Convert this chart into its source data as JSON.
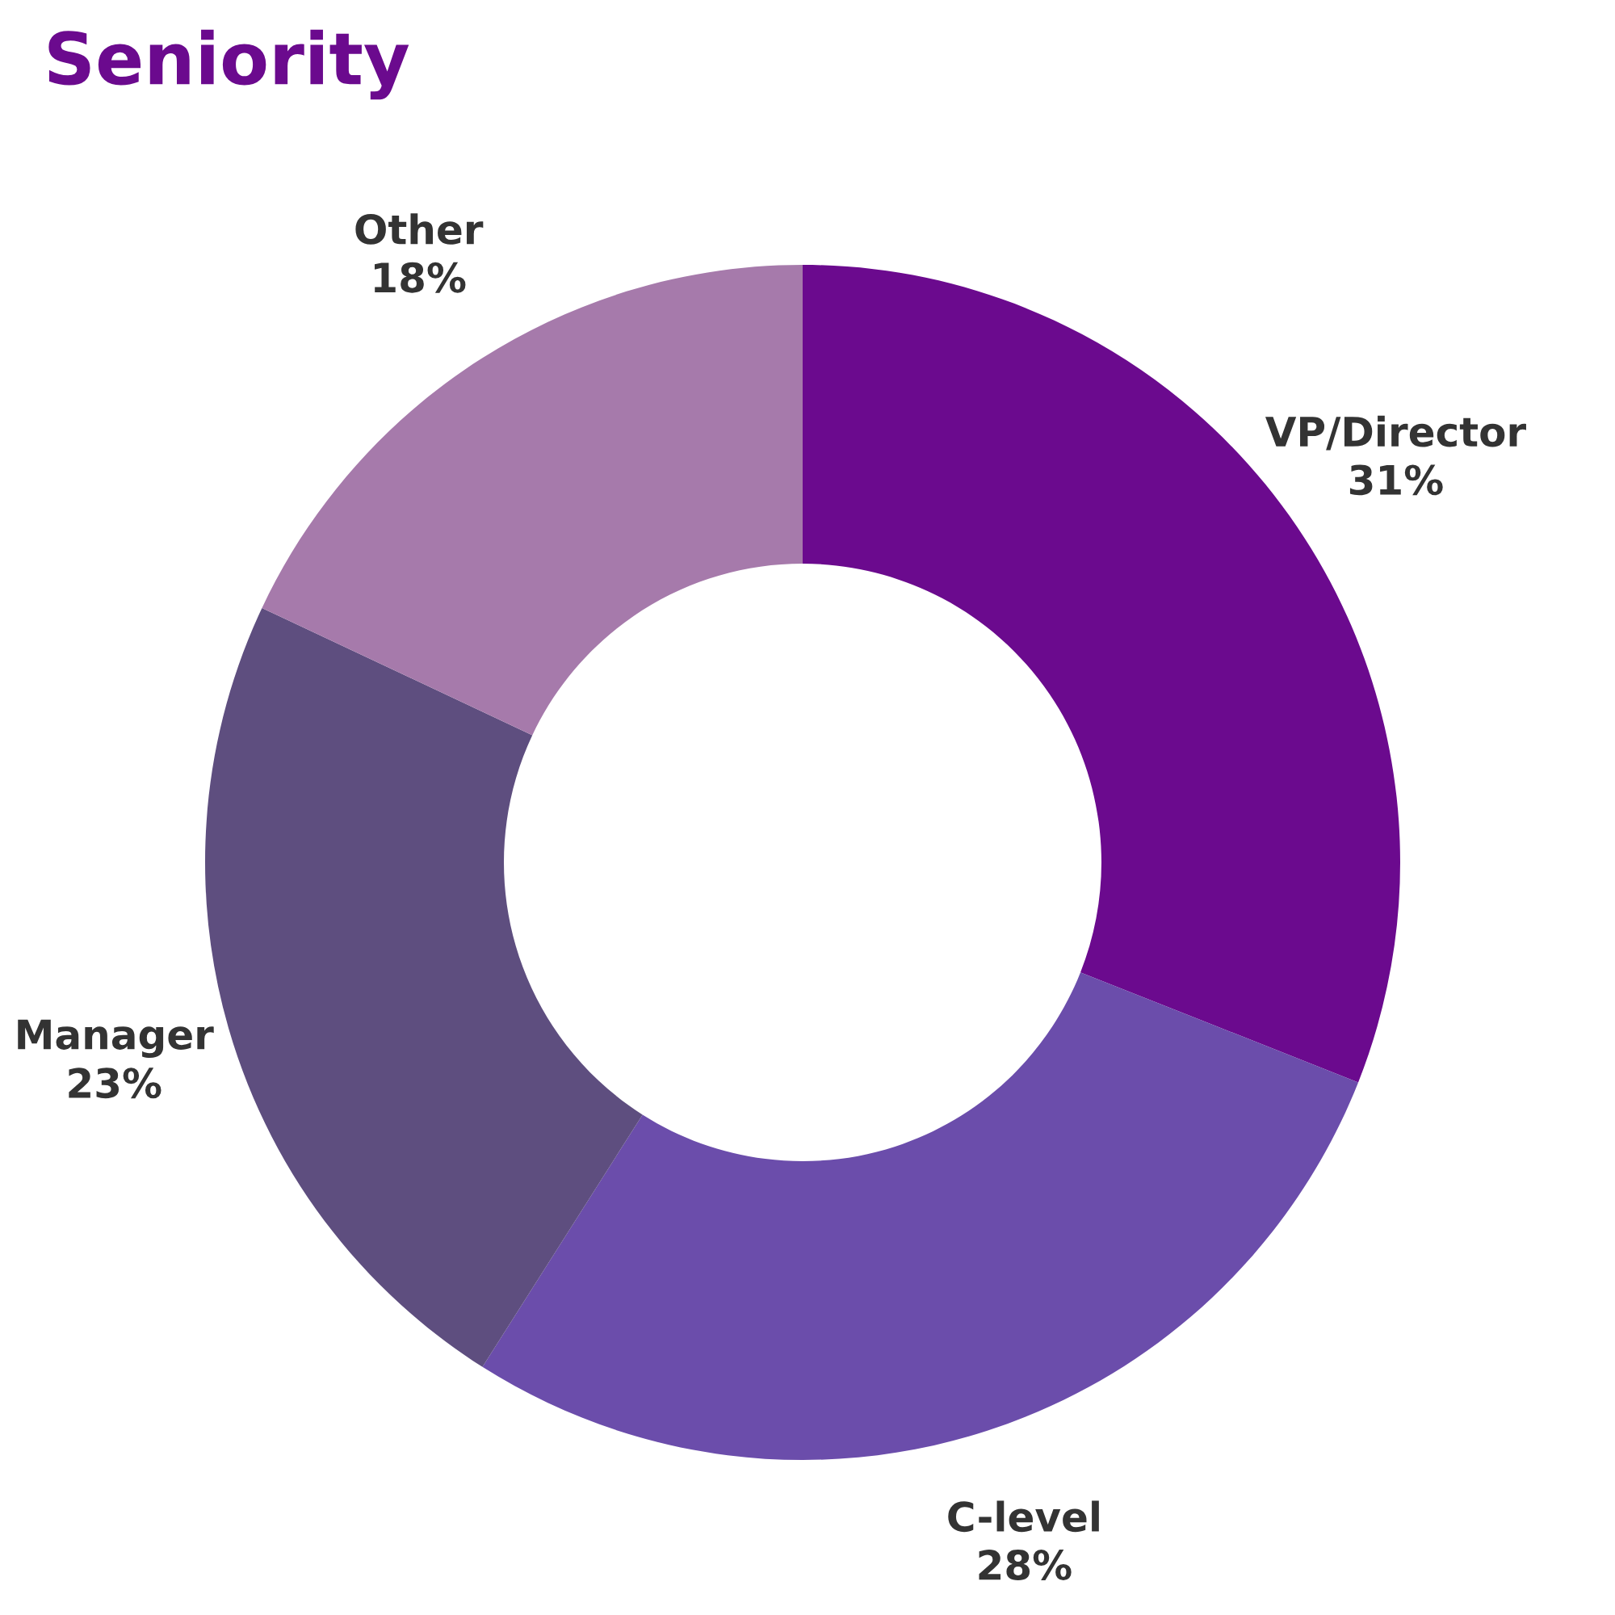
{
  "chart_data": {
    "type": "donut",
    "title": "Seniority",
    "categories": [
      "VP/Director",
      "C-level",
      "Manager",
      "Other"
    ],
    "values": [
      31,
      28,
      23,
      18
    ],
    "value_labels": [
      "31%",
      "28%",
      "23%",
      "18%"
    ],
    "colors": [
      "#6b0a8e",
      "#6b4dab",
      "#5e4e7f",
      "#a67aab"
    ],
    "legend": false
  }
}
